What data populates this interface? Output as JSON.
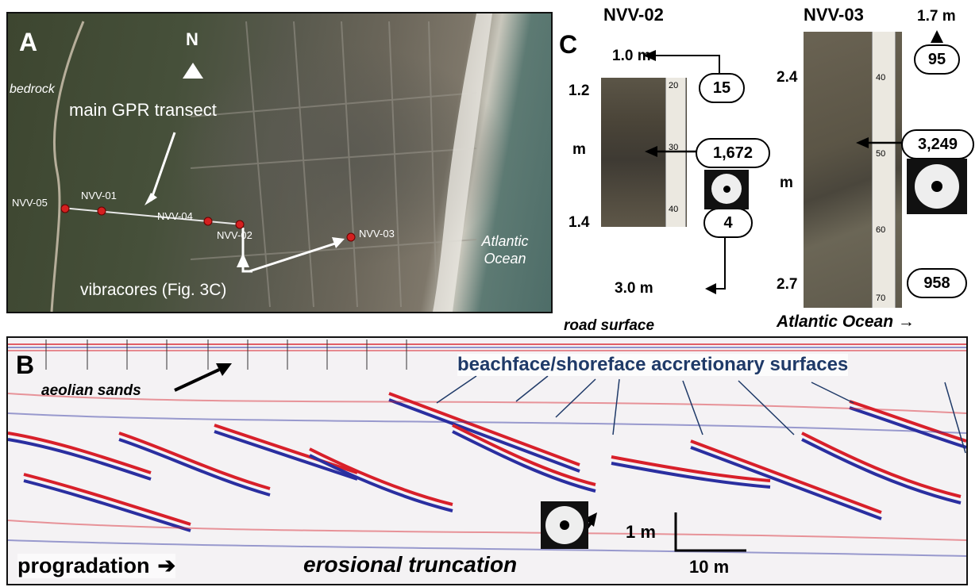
{
  "panel_a": {
    "letter": "A",
    "north": "N",
    "bedrock": "bedrock",
    "gpr_label": "main GPR transect",
    "ocean": "Atlantic Ocean",
    "vibracores": "vibracores (Fig. 3C)",
    "sites": [
      "NVV-05",
      "NVV-01",
      "NVV-04",
      "NVV-02",
      "NVV-03"
    ]
  },
  "panel_c": {
    "letter": "C",
    "core1": {
      "name": "NVV-02",
      "top_depth": "1.0 m",
      "upper": "1.2",
      "unit": "m",
      "lower": "1.4",
      "bottom_depth": "3.0 m",
      "counts": [
        "15",
        "1,672",
        "4"
      ],
      "ruler_marks": [
        "20",
        "30",
        "40"
      ]
    },
    "core2": {
      "name": "NVV-03",
      "top_depth": "1.7 m",
      "upper": "2.4",
      "unit": "m",
      "lower": "2.7",
      "counts": [
        "95",
        "3,249",
        "958"
      ],
      "ruler_marks": [
        "40",
        "50",
        "60",
        "70"
      ]
    },
    "ocean_arrow": "Atlantic Ocean →"
  },
  "panel_b": {
    "letter": "B",
    "road": "road surface",
    "aeolian": "aeolian sands",
    "beachface": "beachface/shoreface accretionary surfaces",
    "progradation": "progradation",
    "erosional": "erosional truncation",
    "scale_v": "1 m",
    "scale_h": "10 m"
  },
  "colors": {
    "beachface": "#1f3a68",
    "reflector_red": "#d8202a",
    "reflector_blue": "#2a2fa0",
    "site_dot": "#d42020"
  }
}
